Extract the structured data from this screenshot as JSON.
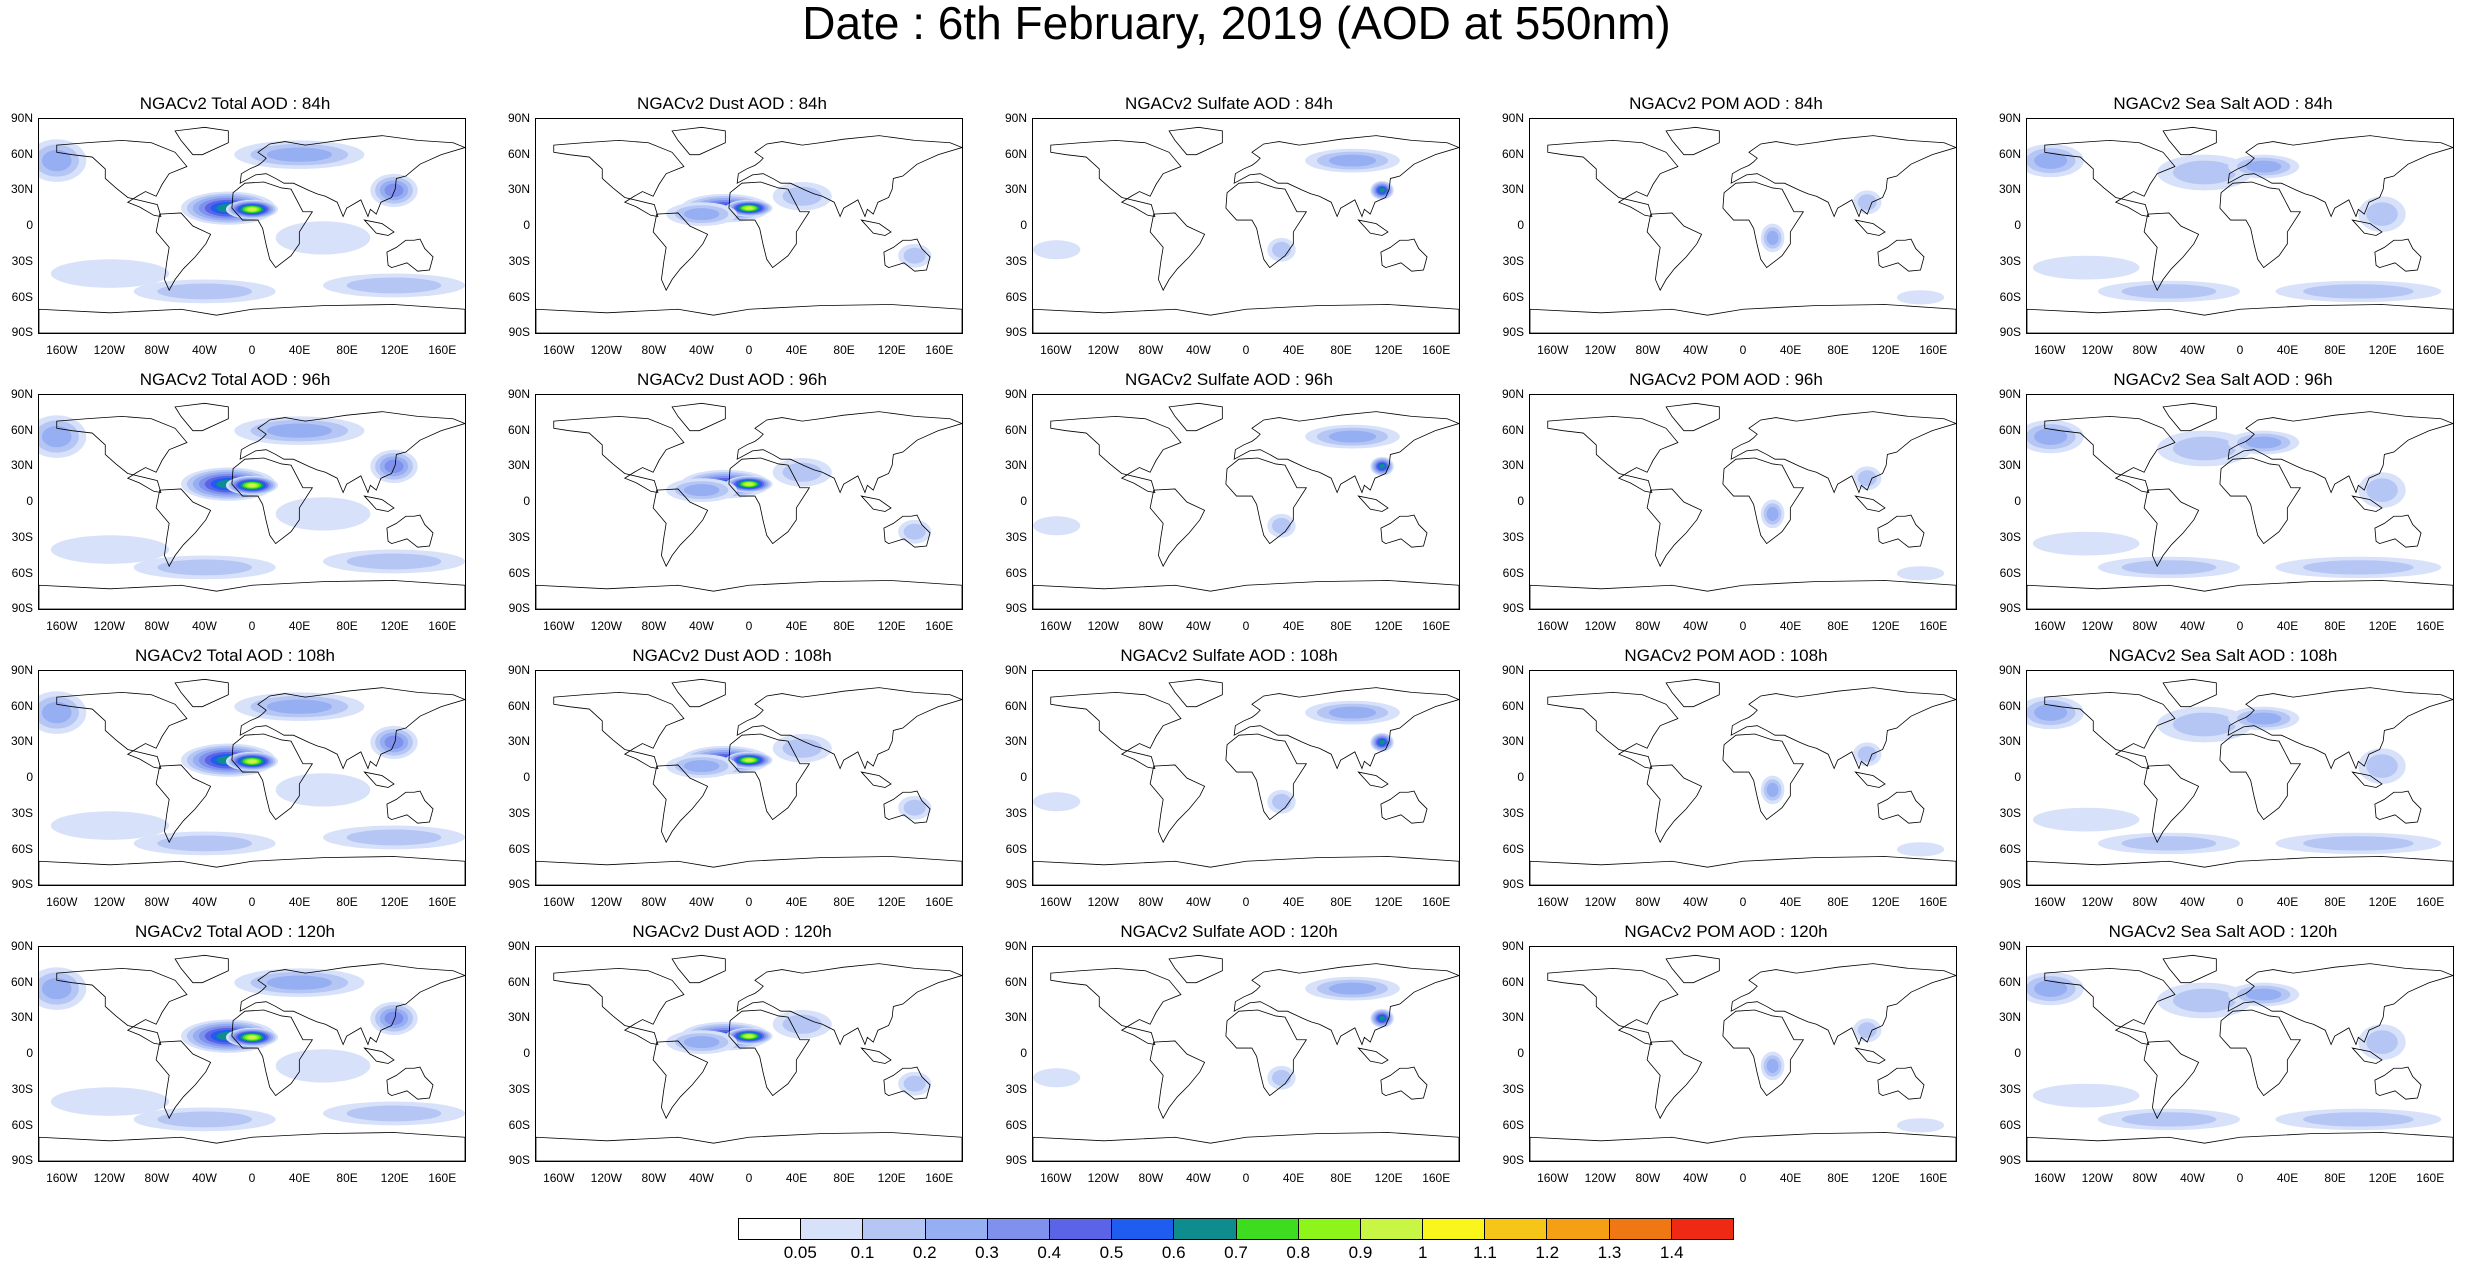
{
  "title": "Date : 6th February, 2019 (AOD at 550nm)",
  "panels": [
    {
      "title": "NGACv2 Total AOD : 84h",
      "kind": "total"
    },
    {
      "title": "NGACv2 Dust AOD : 84h",
      "kind": "dust"
    },
    {
      "title": "NGACv2 Sulfate AOD : 84h",
      "kind": "sulfate"
    },
    {
      "title": "NGACv2 POM AOD : 84h",
      "kind": "pom"
    },
    {
      "title": "NGACv2 Sea Salt AOD : 84h",
      "kind": "seasalt"
    },
    {
      "title": "NGACv2 Total AOD : 96h",
      "kind": "total"
    },
    {
      "title": "NGACv2 Dust AOD : 96h",
      "kind": "dust"
    },
    {
      "title": "NGACv2 Sulfate AOD : 96h",
      "kind": "sulfate"
    },
    {
      "title": "NGACv2 POM AOD : 96h",
      "kind": "pom"
    },
    {
      "title": "NGACv2 Sea Salt AOD : 96h",
      "kind": "seasalt"
    },
    {
      "title": "NGACv2 Total AOD : 108h",
      "kind": "total"
    },
    {
      "title": "NGACv2 Dust AOD : 108h",
      "kind": "dust"
    },
    {
      "title": "NGACv2 Sulfate AOD : 108h",
      "kind": "sulfate"
    },
    {
      "title": "NGACv2 POM AOD : 108h",
      "kind": "pom"
    },
    {
      "title": "NGACv2 Sea Salt AOD : 108h",
      "kind": "seasalt"
    },
    {
      "title": "NGACv2 Total AOD : 120h",
      "kind": "total"
    },
    {
      "title": "NGACv2 Dust AOD : 120h",
      "kind": "dust"
    },
    {
      "title": "NGACv2 Sulfate AOD : 120h",
      "kind": "sulfate"
    },
    {
      "title": "NGACv2 POM AOD : 120h",
      "kind": "pom"
    },
    {
      "title": "NGACv2 Sea Salt  AOD : 120h",
      "kind": "seasalt"
    }
  ],
  "lat_labels": [
    "90N",
    "60N",
    "30N",
    "0",
    "30S",
    "60S",
    "90S"
  ],
  "lon_labels": [
    "160W",
    "120W",
    "80W",
    "40W",
    "0",
    "40E",
    "80E",
    "120E",
    "160E"
  ],
  "colorbar": {
    "labels": [
      "0.05",
      "0.1",
      "0.2",
      "0.3",
      "0.4",
      "0.5",
      "0.6",
      "0.7",
      "0.8",
      "0.9",
      "1",
      "1.1",
      "1.2",
      "1.3",
      "1.4"
    ],
    "colors": [
      "#ffffff",
      "#d7e1fa",
      "#b5c6f5",
      "#96aef2",
      "#7f91ec",
      "#5b64e6",
      "#1f5cf0",
      "#0f8d8e",
      "#3ddc1e",
      "#8ef51a",
      "#c9f545",
      "#faf51a",
      "#f5c518",
      "#f5a014",
      "#f07814",
      "#ee2a14"
    ]
  }
}
